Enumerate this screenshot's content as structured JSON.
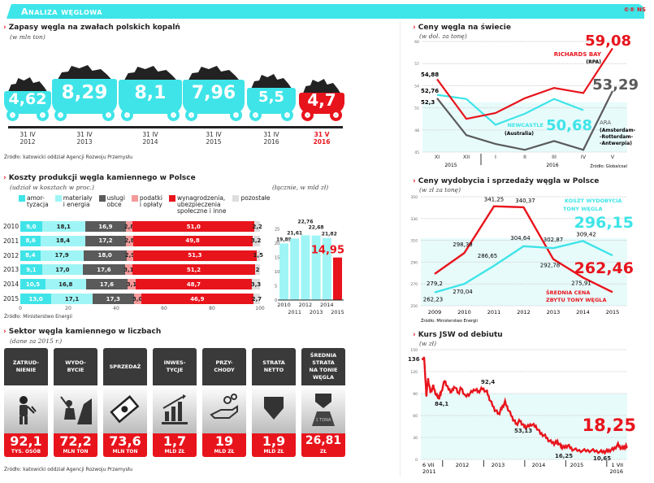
{
  "header": {
    "title": "Analiza węglowa",
    "logo": "©® NS"
  },
  "stocks": {
    "title": "Zapasy węgla na zwałach polskich kopalń",
    "subtitle": "(w mln ton)",
    "source": "Źródło: katowicki oddział Agencji Rozwoju Przemysłu",
    "items": [
      {
        "value": "4,62",
        "date": "31 IV",
        "year": "2012"
      },
      {
        "value": "8,29",
        "date": "31 IV",
        "year": "2013"
      },
      {
        "value": "8,1",
        "date": "31 IV",
        "year": "2014"
      },
      {
        "value": "7,96",
        "date": "31 IV",
        "year": "2015"
      },
      {
        "value": "5,5",
        "date": "31 IV",
        "year": "2016"
      },
      {
        "value": "4,7",
        "date": "31 V",
        "year": "2016",
        "highlight": true
      }
    ]
  },
  "costs": {
    "title": "Koszty produkcji węgla kamiennego w Polsce",
    "subtitle": "(udział w kosztach w proc.)",
    "source": "Źródło: Ministerstwo Energii",
    "legend": [
      {
        "label": "amor-\ntyzacja",
        "color": "#3fe4e8"
      },
      {
        "label": "materiały\ni energia",
        "color": "#9ff5f5"
      },
      {
        "label": "usługi\nobce",
        "color": "#5a5a5a"
      },
      {
        "label": "podatki\ni opłaty",
        "color": "#f59a9a"
      },
      {
        "label": "wynagrodzenia,\nubezpieczenia\nspołeczne i inne",
        "color": "#e8141c"
      },
      {
        "label": "pozostałe",
        "color": "#dddddd"
      }
    ],
    "rows": [
      {
        "year": "2010",
        "values": [
          "9,0",
          "18,1",
          "16,9",
          "2,8",
          "51,0",
          "2,2"
        ]
      },
      {
        "year": "2011",
        "values": [
          "8,6",
          "18,4",
          "17,2",
          "2,8",
          "49,8",
          "3,2"
        ]
      },
      {
        "year": "2012",
        "values": [
          "8,4",
          "17,9",
          "18,0",
          "2,9",
          "51,3",
          "1,5"
        ]
      },
      {
        "year": "2013",
        "values": [
          "9,1",
          "17,0",
          "17,6",
          "3,1",
          "51,2",
          "2"
        ]
      },
      {
        "year": "2014",
        "values": [
          "10,5",
          "16,8",
          "17,6",
          "3,1",
          "48,7",
          "3,3"
        ]
      },
      {
        "year": "2015",
        "values": [
          "13,0",
          "17,1",
          "17,3",
          "3,0",
          "46,9",
          "2,7"
        ]
      }
    ],
    "xticks": [
      "0",
      "20",
      "40",
      "60",
      "80",
      "100"
    ],
    "totals": {
      "subtitle": "(łącznie, w mld zł)",
      "yticks": [
        "0",
        "5",
        "10",
        "15",
        "20",
        "25"
      ],
      "years": [
        "2010",
        "2011",
        "2012",
        "2013",
        "2014",
        "2015"
      ],
      "values": [
        19.89,
        21.61,
        22.76,
        22.68,
        21.82,
        14.95
      ],
      "labels": [
        "19,89",
        "21,61",
        "22,76",
        "22,68",
        "21,82",
        "14,95"
      ]
    }
  },
  "sector": {
    "title": "Sektor węgla kamiennego w liczbach",
    "subtitle": "(dane za 2015 r.)",
    "source": "Źródło: katowicki oddział Agencji Rozwoju Przemysłu",
    "tiles": [
      {
        "label": "ZATRUD-\nNIENIE",
        "value": "92,1",
        "unit": "TYS. OSÓB",
        "icon": "miner-icon"
      },
      {
        "label": "WYDO-\nBYCIE",
        "value": "72,2",
        "unit": "MLN TON",
        "icon": "miner-pickaxe-icon"
      },
      {
        "label": "SPRZEDAŻ",
        "value": "73,6",
        "unit": "MLN TON",
        "icon": "banknotes-icon"
      },
      {
        "label": "INWES-\nTYCJE",
        "value": "1,7",
        "unit": "MLD ZŁ",
        "icon": "growth-chart-icon"
      },
      {
        "label": "PRZY-\nCHODY",
        "value": "19",
        "unit": "MLD ZŁ",
        "icon": "hand-coins-icon"
      },
      {
        "label": "STRATA\nNETTO",
        "value": "1,9",
        "unit": "MLD ZŁ",
        "icon": "down-arrow-icon"
      },
      {
        "label": "ŚREDNIA\nSTRATA\nNA TONIE\nWĘGLA",
        "value": "26,81",
        "unit": "ZŁ",
        "icon": "weight-ton-icon",
        "weight_text": "1 TONA"
      }
    ]
  },
  "chart_data": [
    {
      "type": "line",
      "title": "Ceny węgla na świecie",
      "subtitle": "(w dol. za tonę)",
      "source": "Źródło: Globalcoal",
      "ylim": [
        45,
        60
      ],
      "yticks": [
        "45",
        "48",
        "51",
        "54",
        "57",
        "60"
      ],
      "categories": [
        "XI",
        "XII",
        "I",
        "II",
        "III",
        "IV",
        "V"
      ],
      "year_labels": [
        "2015",
        "2016"
      ],
      "series": [
        {
          "name": "RICHARDS BAY",
          "note": "(RPA)",
          "color": "#e8141c",
          "values": [
            54.88,
            49.5,
            50.3,
            52.3,
            53.7,
            53.0,
            59.08
          ],
          "start_label": "54,88",
          "end_label": "59,08"
        },
        {
          "name": "NEWCASTLE",
          "note": "(Australia)",
          "color": "#3fe4e8",
          "values": [
            52.76,
            52.2,
            48.7,
            50.2,
            52.2,
            50.68,
            null
          ],
          "start_label": "52,76",
          "end_label": "50,68"
        },
        {
          "name": "ARA",
          "note": "(Amsterdam-\n-Rotterdam-\n-Antwerpia)",
          "color": "#5a5a5a",
          "values": [
            52.3,
            47.3,
            46.1,
            45.3,
            46.5,
            45.3,
            53.29
          ],
          "start_label": "52,3",
          "end_label": "53,29"
        }
      ]
    },
    {
      "type": "line",
      "title": "Ceny wydobycia i sprzedaży węgla w Polsce",
      "subtitle": "(w zł za tonę)",
      "source": "Źródło: Ministerstwo Energii",
      "ylim": [
        250,
        350
      ],
      "yticks": [
        "250",
        "270",
        "290",
        "310",
        "330",
        "350"
      ],
      "categories": [
        "2009",
        "2010",
        "2011",
        "2012",
        "2013",
        "2014",
        "2015"
      ],
      "series": [
        {
          "name": "ŚREDNIA CENA ZBYTU TONY WĘGLA",
          "color": "#e8141c",
          "values": [
            279.2,
            298.39,
            341.25,
            340.37,
            292.78,
            275.91,
            262.46
          ],
          "labels": [
            "279,2",
            "298,39",
            "341,25",
            "340,37",
            "292,78",
            "275,91",
            "262,46"
          ]
        },
        {
          "name": "KOSZT WYDOBYCIA TONY WĘGLA",
          "color": "#3fe4e8",
          "values": [
            262.23,
            270.04,
            286.65,
            304.64,
            302.87,
            309.42,
            296.15
          ],
          "labels": [
            "262,23",
            "270,04",
            "286,65",
            "304,64",
            "302,87",
            "309,42",
            "296,15"
          ]
        }
      ]
    },
    {
      "type": "line",
      "title": "Kurs JSW od debiutu",
      "subtitle": "(w zł)",
      "ylim": [
        0,
        150
      ],
      "yticks": [
        "0",
        "30",
        "60",
        "90",
        "120",
        "150"
      ],
      "x_labels": [
        "6 VII\n2011",
        "2012",
        "2013",
        "2014",
        "2015",
        "1 VII\n2016"
      ],
      "points": [
        [
          "2011-07-06",
          136
        ],
        [
          "2011-07-20",
          140
        ],
        [
          "2011-08-10",
          88
        ],
        [
          "2011-08-25",
          110
        ],
        [
          "2011-09-15",
          92
        ],
        [
          "2011-10-10",
          100
        ],
        [
          "2011-11-05",
          88
        ],
        [
          "2011-12-01",
          84.1
        ],
        [
          "2011-12-20",
          92
        ],
        [
          "2012-01-20",
          108
        ],
        [
          "2012-02-15",
          98
        ],
        [
          "2012-03-20",
          92
        ],
        [
          "2012-04-20",
          100
        ],
        [
          "2012-05-20",
          90
        ],
        [
          "2012-06-15",
          98
        ],
        [
          "2012-07-20",
          86
        ],
        [
          "2012-09-01",
          90
        ],
        [
          "2012-10-15",
          96
        ],
        [
          "2012-11-15",
          92.4
        ],
        [
          "2012-12-20",
          97
        ],
        [
          "2013-01-30",
          92
        ],
        [
          "2013-03-01",
          80
        ],
        [
          "2013-04-10",
          68
        ],
        [
          "2013-05-15",
          62
        ],
        [
          "2013-06-10",
          70
        ],
        [
          "2013-07-10",
          78
        ],
        [
          "2013-08-15",
          66
        ],
        [
          "2013-09-20",
          55
        ],
        [
          "2013-10-20",
          48
        ],
        [
          "2013-11-20",
          53.13
        ],
        [
          "2013-12-20",
          46
        ],
        [
          "2014-01-20",
          44
        ],
        [
          "2014-03-01",
          48
        ],
        [
          "2014-04-10",
          45
        ],
        [
          "2014-05-20",
          36
        ],
        [
          "2014-07-01",
          32
        ],
        [
          "2014-08-10",
          25
        ],
        [
          "2014-09-20",
          22
        ],
        [
          "2014-10-20",
          24
        ],
        [
          "2014-11-20",
          18
        ],
        [
          "2014-12-15",
          16.25
        ],
        [
          "2015-01-20",
          19
        ],
        [
          "2015-03-01",
          14
        ],
        [
          "2015-05-01",
          12
        ],
        [
          "2015-07-01",
          12
        ],
        [
          "2015-09-01",
          12
        ],
        [
          "2015-11-01",
          10.5
        ],
        [
          "2015-12-15",
          10.65
        ],
        [
          "2016-01-20",
          12
        ],
        [
          "2016-03-01",
          14
        ],
        [
          "2016-04-10",
          20
        ],
        [
          "2016-05-10",
          15
        ],
        [
          "2016-06-10",
          17
        ],
        [
          "2016-07-01",
          18.25
        ]
      ],
      "annotations": [
        {
          "label": "136"
        },
        {
          "label": "84,1"
        },
        {
          "label": "92,4"
        },
        {
          "label": "53,13"
        },
        {
          "label": "16,25"
        },
        {
          "label": "10,65"
        },
        {
          "label": "18,25"
        }
      ]
    }
  ]
}
